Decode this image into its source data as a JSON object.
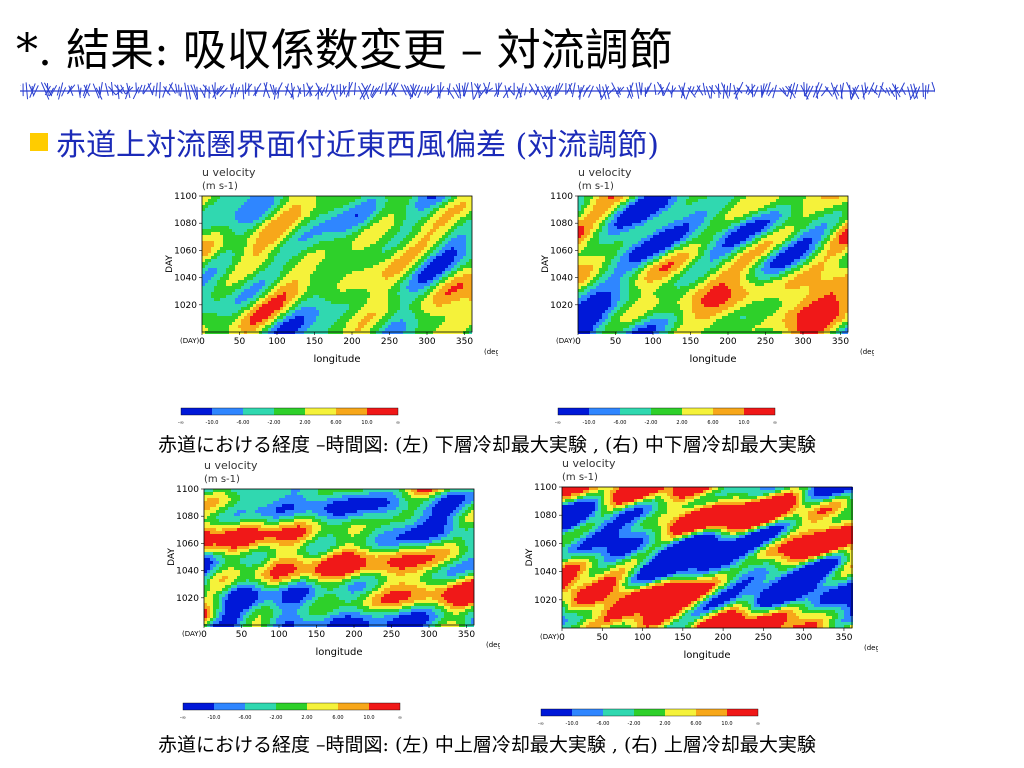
{
  "slide": {
    "title": "*. 結果: 吸収係数変更 – 対流調節",
    "bullet": "赤道上対流圏界面付近東西風偏差 (対流調節)"
  },
  "colors": {
    "bullet": "#ffcc00",
    "bullet_text": "#1b2ab8",
    "rule": "#2a3fd0"
  },
  "palette": [
    "#0018d8",
    "#2f86ff",
    "#30d8b0",
    "#2ed02a",
    "#f5f23a",
    "#f7a71a",
    "#f01818"
  ],
  "colorbar_labels": [
    "-∞",
    "-10.0",
    "-6.00",
    "-2.00",
    "2.00",
    "6.00",
    "10.0",
    "∞"
  ],
  "captions": {
    "top": "赤道における経度 –時間図: (左) 下層冷却最大実験 , (右) 中下層冷却最大実験",
    "bottom": "赤道における経度 –時間図: (左) 中上層冷却最大実験 , (右) 上層冷却最大実験"
  },
  "chart_data": [
    {
      "type": "heatmap",
      "panel": "top-left",
      "title": "u velocity",
      "units": "(m s-1)",
      "xlabel": "longitude",
      "ylabel": "DAY",
      "x_corner": "(DAY)",
      "x_unit": "(deg)",
      "xticks": [
        0,
        50,
        100,
        150,
        200,
        250,
        300,
        350
      ],
      "yticks": [
        1020,
        1040,
        1060,
        1080,
        1100
      ],
      "xlim": [
        0,
        360
      ],
      "ylim": [
        1000,
        1100
      ],
      "levels": [
        "-∞",
        "-10.0",
        "-6.00",
        "-2.00",
        "2.00",
        "6.00",
        "10.0",
        "∞"
      ]
    },
    {
      "type": "heatmap",
      "panel": "top-right",
      "title": "u velocity",
      "units": "(m s-1)",
      "xlabel": "longitude",
      "ylabel": "DAY",
      "x_corner": "(DAY)",
      "x_unit": "(deg)",
      "xticks": [
        0,
        50,
        100,
        150,
        200,
        250,
        300,
        350
      ],
      "yticks": [
        1020,
        1040,
        1060,
        1080,
        1100
      ],
      "xlim": [
        0,
        360
      ],
      "ylim": [
        1000,
        1100
      ],
      "levels": [
        "-∞",
        "-10.0",
        "-6.00",
        "-2.00",
        "2.00",
        "6.00",
        "10.0",
        "∞"
      ]
    },
    {
      "type": "heatmap",
      "panel": "bottom-left",
      "title": "u velocity",
      "units": "(m s-1)",
      "xlabel": "longitude",
      "ylabel": "DAY",
      "x_corner": "(DAY)",
      "x_unit": "(deg)",
      "xticks": [
        0,
        50,
        100,
        150,
        200,
        250,
        300,
        350
      ],
      "yticks": [
        1020,
        1040,
        1060,
        1080,
        1100
      ],
      "xlim": [
        0,
        360
      ],
      "ylim": [
        1000,
        1100
      ],
      "levels": [
        "-∞",
        "-10.0",
        "-6.00",
        "-2.00",
        "2.00",
        "6.00",
        "10.0",
        "∞"
      ]
    },
    {
      "type": "heatmap",
      "panel": "bottom-right",
      "title": "u velocity",
      "units": "(m s-1)",
      "xlabel": "longitude",
      "ylabel": "DAY",
      "x_corner": "(DAY)",
      "x_unit": "(deg)",
      "xticks": [
        0,
        50,
        100,
        150,
        200,
        250,
        300,
        350
      ],
      "yticks": [
        1020,
        1040,
        1060,
        1080,
        1100
      ],
      "xlim": [
        0,
        360
      ],
      "ylim": [
        1000,
        1100
      ],
      "levels": [
        "-∞",
        "-10.0",
        "-6.00",
        "-2.00",
        "2.00",
        "6.00",
        "10.0",
        "∞"
      ]
    }
  ]
}
